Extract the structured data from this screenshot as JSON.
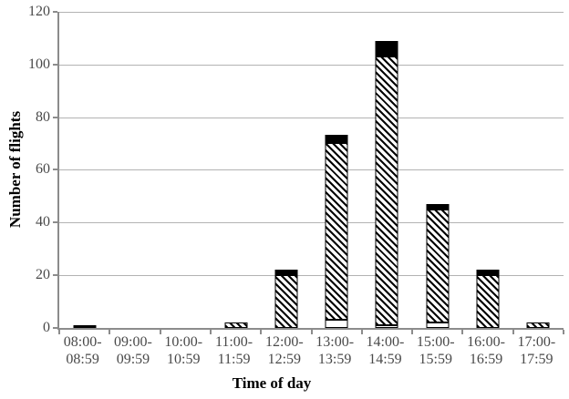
{
  "chart_data": {
    "type": "bar",
    "stacked": true,
    "title": "",
    "xlabel": "Time of day",
    "ylabel": "Number of flights",
    "ylim": [
      0,
      120
    ],
    "yticks": [
      0,
      20,
      40,
      60,
      80,
      100,
      120
    ],
    "grid": true,
    "legend": "none",
    "categories": [
      {
        "top": "08:00-",
        "bottom": "08:59"
      },
      {
        "top": "09:00-",
        "bottom": "09:59"
      },
      {
        "top": "10:00-",
        "bottom": "10:59"
      },
      {
        "top": "11:00-",
        "bottom": "11:59"
      },
      {
        "top": "12:00-",
        "bottom": "12:59"
      },
      {
        "top": "13:00-",
        "bottom": "13:59"
      },
      {
        "top": "14:00-",
        "bottom": "14:59"
      },
      {
        "top": "15:00-",
        "bottom": "15:59"
      },
      {
        "top": "16:00-",
        "bottom": "16:59"
      },
      {
        "top": "17:00-",
        "bottom": "17:59"
      }
    ],
    "series": [
      {
        "name": "white",
        "fill": "white",
        "values": [
          0,
          0,
          0,
          0,
          0,
          3,
          1,
          2,
          0,
          0
        ]
      },
      {
        "name": "hatched",
        "fill": "hatch",
        "values": [
          0,
          0,
          0,
          2,
          20,
          67,
          102,
          43,
          20,
          2
        ]
      },
      {
        "name": "black",
        "fill": "black",
        "values": [
          1,
          0,
          0,
          0,
          2,
          3,
          6,
          2,
          2,
          0
        ]
      }
    ],
    "totals": [
      1,
      0,
      0,
      2,
      22,
      73,
      109,
      47,
      22,
      2
    ]
  },
  "colors": {
    "axis": "#8c8c8c",
    "gridline": "#b3b3b3",
    "tick_label": "#494949",
    "bar_outline": "#000000",
    "background": "#ffffff"
  }
}
